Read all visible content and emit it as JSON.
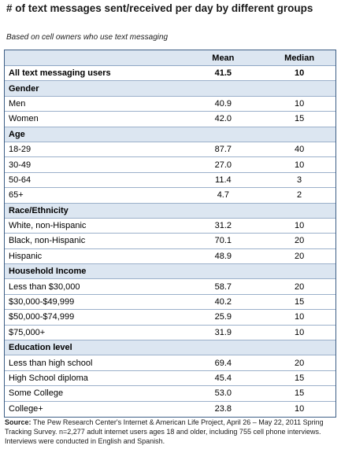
{
  "title": "# of text messages sent/received per day by different groups",
  "subtitle": "Based on cell owners who use text messaging",
  "chart_data": {
    "type": "table",
    "columns": [
      "",
      "Mean",
      "Median"
    ],
    "rows": [
      {
        "kind": "total",
        "label": "All text messaging users",
        "mean": "41.5",
        "median": "10"
      },
      {
        "kind": "section",
        "label": "Gender"
      },
      {
        "kind": "data",
        "label": "Men",
        "mean": "40.9",
        "median": "10"
      },
      {
        "kind": "data",
        "label": "Women",
        "mean": "42.0",
        "median": "15"
      },
      {
        "kind": "section",
        "label": "Age"
      },
      {
        "kind": "data",
        "label": "18-29",
        "mean": "87.7",
        "median": "40"
      },
      {
        "kind": "data",
        "label": "30-49",
        "mean": "27.0",
        "median": "10"
      },
      {
        "kind": "data",
        "label": "50-64",
        "mean": "11.4",
        "median": "3"
      },
      {
        "kind": "data",
        "label": "65+",
        "mean": "4.7",
        "median": "2"
      },
      {
        "kind": "section",
        "label": "Race/Ethnicity"
      },
      {
        "kind": "data",
        "label": "White, non-Hispanic",
        "mean": "31.2",
        "median": "10"
      },
      {
        "kind": "data",
        "label": "Black, non-Hispanic",
        "mean": "70.1",
        "median": "20"
      },
      {
        "kind": "data",
        "label": "Hispanic",
        "mean": "48.9",
        "median": "20"
      },
      {
        "kind": "section",
        "label": "Household Income"
      },
      {
        "kind": "data",
        "label": "Less than $30,000",
        "mean": "58.7",
        "median": "20"
      },
      {
        "kind": "data",
        "label": "$30,000-$49,999",
        "mean": "40.2",
        "median": "15"
      },
      {
        "kind": "data",
        "label": "$50,000-$74,999",
        "mean": "25.9",
        "median": "10"
      },
      {
        "kind": "data",
        "label": "$75,000+",
        "mean": "31.9",
        "median": "10"
      },
      {
        "kind": "section",
        "label": "Education level"
      },
      {
        "kind": "data",
        "label": "Less than high school",
        "mean": "69.4",
        "median": "20"
      },
      {
        "kind": "data",
        "label": "High School diploma",
        "mean": "45.4",
        "median": "15"
      },
      {
        "kind": "data",
        "label": "Some College",
        "mean": "53.0",
        "median": "15"
      },
      {
        "kind": "data",
        "label": "College+",
        "mean": "23.8",
        "median": "10"
      }
    ]
  },
  "source": {
    "label": "Source:",
    "text": " The Pew Research Center's Internet & American Life Project, April 26 – May 22, 2011 Spring Tracking Survey. n=2,277 adult internet users ages 18 and older, including 755 cell phone interviews. Interviews were conducted in English and Spanish."
  },
  "colors": {
    "header_fill": "#dce6f1",
    "border": "#3e5f86"
  }
}
